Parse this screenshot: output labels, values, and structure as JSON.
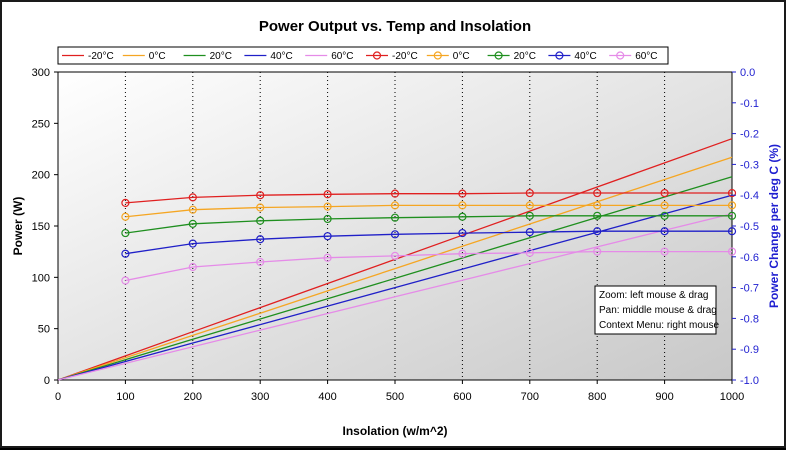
{
  "chart_data": {
    "type": "line",
    "title": "Power Output vs. Temp and Insolation",
    "xlabel": "Insolation (w/m^2)",
    "ylabel": "Power (W)",
    "y2label": "Power Change per deg C (%)",
    "xlim": [
      0,
      1000
    ],
    "ylim": [
      0,
      300
    ],
    "y2lim": [
      -1.0,
      0.0
    ],
    "x_ticks": [
      "0",
      "100",
      "200",
      "300",
      "400",
      "500",
      "600",
      "700",
      "800",
      "900",
      "1000"
    ],
    "y_ticks": [
      "0",
      "50",
      "100",
      "150",
      "200",
      "250",
      "300"
    ],
    "y2_ticks": [
      "0.0",
      "-0.1",
      "-0.2",
      "-0.3",
      "-0.4",
      "-0.5",
      "-0.6",
      "-0.7",
      "-0.8",
      "-0.9",
      "-1.0"
    ],
    "grid": "vertical dotted",
    "legend_position": "top",
    "x": [
      0,
      100,
      200,
      300,
      400,
      500,
      600,
      700,
      800,
      900,
      1000
    ],
    "series": [
      {
        "name": "-20°C",
        "axis": "left",
        "marker": "none",
        "color": "#e02020",
        "values": [
          0,
          23.5,
          47,
          70.5,
          94,
          117.5,
          141,
          164.5,
          188,
          211.5,
          235
        ]
      },
      {
        "name": "0°C",
        "axis": "left",
        "marker": "none",
        "color": "#f5a623",
        "values": [
          0,
          21.7,
          43.4,
          65.1,
          86.8,
          108.5,
          130.2,
          151.9,
          173.6,
          195.3,
          217
        ]
      },
      {
        "name": "20°C",
        "axis": "left",
        "marker": "none",
        "color": "#1f8f1f",
        "values": [
          0,
          19.8,
          39.6,
          59.4,
          79.2,
          99,
          118.8,
          138.6,
          158.4,
          178.2,
          198
        ]
      },
      {
        "name": "40°C",
        "axis": "left",
        "marker": "none",
        "color": "#2020c8",
        "values": [
          0,
          18,
          36,
          54,
          72,
          90,
          108,
          126,
          144,
          162,
          180
        ]
      },
      {
        "name": "60°C",
        "axis": "left",
        "marker": "none",
        "color": "#e58be8",
        "values": [
          0,
          16.2,
          32.4,
          48.6,
          64.8,
          81,
          97.2,
          113.4,
          129.6,
          145.8,
          162
        ]
      },
      {
        "name": "-20°C",
        "axis": "right",
        "marker": "circle",
        "color": "#e02020",
        "x": [
          100,
          200,
          300,
          400,
          500,
          600,
          700,
          800,
          900,
          1000
        ],
        "values": [
          -0.425,
          -0.407,
          -0.4,
          -0.397,
          -0.395,
          -0.395,
          -0.393,
          -0.393,
          -0.393,
          -0.393
        ]
      },
      {
        "name": "0°C",
        "axis": "right",
        "marker": "circle",
        "color": "#f5a623",
        "x": [
          100,
          200,
          300,
          400,
          500,
          600,
          700,
          800,
          900,
          1000
        ],
        "values": [
          -0.47,
          -0.447,
          -0.44,
          -0.437,
          -0.433,
          -0.433,
          -0.433,
          -0.433,
          -0.433,
          -0.433
        ]
      },
      {
        "name": "20°C",
        "axis": "right",
        "marker": "circle",
        "color": "#1f8f1f",
        "x": [
          100,
          200,
          300,
          400,
          500,
          600,
          700,
          800,
          900,
          1000
        ],
        "values": [
          -0.523,
          -0.493,
          -0.483,
          -0.477,
          -0.473,
          -0.47,
          -0.467,
          -0.467,
          -0.467,
          -0.467
        ]
      },
      {
        "name": "40°C",
        "axis": "right",
        "marker": "circle",
        "color": "#2020c8",
        "x": [
          100,
          200,
          300,
          400,
          500,
          600,
          700,
          800,
          900,
          1000
        ],
        "values": [
          -0.59,
          -0.557,
          -0.543,
          -0.533,
          -0.527,
          -0.523,
          -0.52,
          -0.517,
          -0.517,
          -0.517
        ]
      },
      {
        "name": "60°C",
        "axis": "right",
        "marker": "circle",
        "color": "#e58be8",
        "x": [
          100,
          200,
          300,
          400,
          500,
          600,
          700,
          800,
          900,
          1000
        ],
        "values": [
          -0.677,
          -0.633,
          -0.617,
          -0.603,
          -0.597,
          -0.59,
          -0.587,
          -0.583,
          -0.583,
          -0.583
        ]
      }
    ],
    "annotations": [
      "Zoom: left mouse & drag",
      "Pan: middle mouse & drag",
      "Context Menu: right mouse"
    ]
  }
}
